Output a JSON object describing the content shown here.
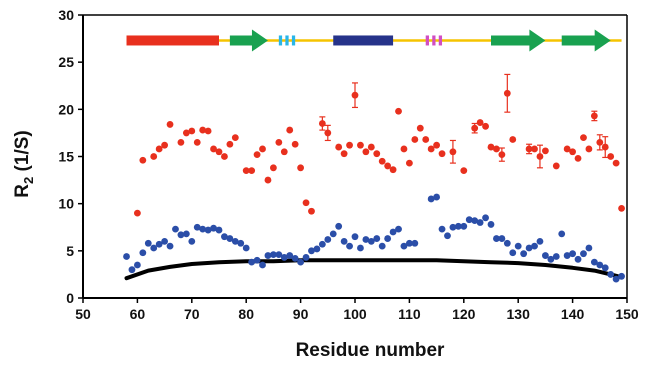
{
  "chart_data": {
    "type": "scatter",
    "xlabel": "Residue number",
    "ylabel_main": "R",
    "ylabel_sub": "2",
    "ylabel_unit": " (1/S)",
    "xlim": [
      50,
      150
    ],
    "ylim": [
      0,
      30
    ],
    "xticks": [
      50,
      60,
      70,
      80,
      90,
      100,
      110,
      120,
      130,
      140,
      150
    ],
    "yticks": [
      0,
      5,
      10,
      15,
      20,
      25,
      30
    ],
    "grid": false,
    "series": [
      {
        "color": "#e8301e",
        "marker": "circle",
        "points": [
          [
            60,
            9.0,
            0
          ],
          [
            61,
            14.6,
            0
          ],
          [
            63,
            15.0,
            0
          ],
          [
            64,
            15.8,
            0
          ],
          [
            65,
            16.2,
            0
          ],
          [
            66,
            18.4,
            0
          ],
          [
            68,
            16.5,
            0
          ],
          [
            69,
            17.5,
            0
          ],
          [
            70,
            17.7,
            0
          ],
          [
            71,
            16.5,
            0
          ],
          [
            72,
            17.8,
            0
          ],
          [
            73,
            17.7,
            0
          ],
          [
            74,
            15.8,
            0
          ],
          [
            75,
            15.5,
            0
          ],
          [
            76,
            15.0,
            0
          ],
          [
            77,
            16.3,
            0
          ],
          [
            78,
            17.0,
            0
          ],
          [
            80,
            13.5,
            0
          ],
          [
            81,
            13.5,
            0
          ],
          [
            82,
            15.2,
            0
          ],
          [
            83,
            15.8,
            0
          ],
          [
            84,
            12.5,
            0
          ],
          [
            85,
            13.8,
            0
          ],
          [
            86,
            16.5,
            0
          ],
          [
            87,
            15.5,
            0
          ],
          [
            88,
            17.8,
            0
          ],
          [
            89,
            16.3,
            0
          ],
          [
            90,
            13.8,
            0
          ],
          [
            91,
            10.1,
            0
          ],
          [
            92,
            9.2,
            0
          ],
          [
            94,
            18.5,
            0.7
          ],
          [
            95,
            17.5,
            0.8
          ],
          [
            97,
            16.0,
            0
          ],
          [
            98,
            15.3,
            0
          ],
          [
            99,
            16.2,
            0
          ],
          [
            100,
            21.5,
            1.3
          ],
          [
            101,
            16.2,
            0
          ],
          [
            102,
            15.5,
            0
          ],
          [
            103,
            16.0,
            0
          ],
          [
            104,
            15.3,
            0
          ],
          [
            105,
            14.5,
            0
          ],
          [
            106,
            14.0,
            0
          ],
          [
            107,
            13.6,
            0
          ],
          [
            108,
            19.8,
            0
          ],
          [
            109,
            15.8,
            0
          ],
          [
            110,
            14.3,
            0
          ],
          [
            111,
            16.8,
            0
          ],
          [
            112,
            18.0,
            0
          ],
          [
            113,
            16.8,
            0
          ],
          [
            114,
            15.8,
            0
          ],
          [
            115,
            16.2,
            0
          ],
          [
            116,
            15.3,
            0
          ],
          [
            118,
            15.5,
            1.2
          ],
          [
            120,
            13.5,
            0
          ],
          [
            122,
            18.0,
            0.5
          ],
          [
            123,
            18.6,
            0
          ],
          [
            124,
            18.2,
            0
          ],
          [
            125,
            16.0,
            0
          ],
          [
            126,
            15.8,
            0
          ],
          [
            127,
            15.2,
            0.7
          ],
          [
            128,
            21.7,
            2.0
          ],
          [
            129,
            16.8,
            0
          ],
          [
            132,
            15.8,
            0.5
          ],
          [
            133,
            15.8,
            0
          ],
          [
            134,
            15.0,
            1.2
          ],
          [
            135,
            15.6,
            0
          ],
          [
            137,
            14.0,
            0
          ],
          [
            139,
            15.8,
            0
          ],
          [
            140,
            15.5,
            0
          ],
          [
            141,
            14.8,
            0
          ],
          [
            142,
            17.0,
            0
          ],
          [
            143,
            15.8,
            0
          ],
          [
            144,
            19.3,
            0.5
          ],
          [
            145,
            16.5,
            0.8
          ],
          [
            146,
            16.0,
            1.1
          ],
          [
            147,
            15.0,
            0
          ],
          [
            148,
            14.3,
            0
          ],
          [
            149,
            9.5,
            0
          ]
        ]
      },
      {
        "color": "#2b4ea8",
        "marker": "circle",
        "points": [
          [
            58,
            4.4
          ],
          [
            59,
            3.0
          ],
          [
            60,
            3.5
          ],
          [
            61,
            4.8
          ],
          [
            62,
            5.8
          ],
          [
            63,
            5.3
          ],
          [
            64,
            5.7
          ],
          [
            65,
            6.0
          ],
          [
            66,
            5.5
          ],
          [
            67,
            7.3
          ],
          [
            68,
            6.7
          ],
          [
            69,
            6.8
          ],
          [
            70,
            6.0
          ],
          [
            71,
            7.5
          ],
          [
            72,
            7.3
          ],
          [
            73,
            7.2
          ],
          [
            74,
            7.4
          ],
          [
            75,
            7.2
          ],
          [
            76,
            6.5
          ],
          [
            77,
            6.3
          ],
          [
            78,
            6.0
          ],
          [
            79,
            5.8
          ],
          [
            80,
            5.3
          ],
          [
            81,
            3.8
          ],
          [
            82,
            4.0
          ],
          [
            83,
            3.5
          ],
          [
            84,
            4.5
          ],
          [
            85,
            4.6
          ],
          [
            86,
            4.6
          ],
          [
            87,
            4.3
          ],
          [
            88,
            4.5
          ],
          [
            89,
            4.2
          ],
          [
            90,
            3.8
          ],
          [
            91,
            4.3
          ],
          [
            92,
            5.0
          ],
          [
            93,
            5.2
          ],
          [
            94,
            5.7
          ],
          [
            95,
            6.2
          ],
          [
            96,
            6.8
          ],
          [
            97,
            7.6
          ],
          [
            98,
            6.0
          ],
          [
            99,
            5.5
          ],
          [
            100,
            6.5
          ],
          [
            101,
            5.3
          ],
          [
            102,
            6.2
          ],
          [
            103,
            6.0
          ],
          [
            104,
            6.3
          ],
          [
            105,
            5.5
          ],
          [
            106,
            6.3
          ],
          [
            107,
            7.0
          ],
          [
            108,
            7.3
          ],
          [
            109,
            5.5
          ],
          [
            110,
            5.8
          ],
          [
            111,
            5.8
          ],
          [
            114,
            10.5
          ],
          [
            115,
            10.7
          ],
          [
            116,
            7.3
          ],
          [
            117,
            6.6
          ],
          [
            118,
            7.5
          ],
          [
            119,
            7.6
          ],
          [
            120,
            7.6
          ],
          [
            121,
            8.3
          ],
          [
            122,
            8.2
          ],
          [
            123,
            8.0
          ],
          [
            124,
            8.5
          ],
          [
            125,
            7.8
          ],
          [
            126,
            6.3
          ],
          [
            127,
            6.3
          ],
          [
            128,
            5.8
          ],
          [
            129,
            4.8
          ],
          [
            130,
            5.5
          ],
          [
            131,
            4.7
          ],
          [
            132,
            5.3
          ],
          [
            133,
            5.5
          ],
          [
            134,
            6.0
          ],
          [
            135,
            4.5
          ],
          [
            136,
            4.1
          ],
          [
            137,
            4.4
          ],
          [
            138,
            6.8
          ],
          [
            139,
            4.5
          ],
          [
            140,
            4.7
          ],
          [
            141,
            4.1
          ],
          [
            142,
            4.7
          ],
          [
            143,
            5.3
          ],
          [
            144,
            3.8
          ],
          [
            145,
            3.5
          ],
          [
            146,
            3.2
          ],
          [
            147,
            2.5
          ],
          [
            148,
            2.0
          ],
          [
            149,
            2.3
          ]
        ]
      }
    ],
    "curve": {
      "color": "#000000",
      "x": [
        58,
        62,
        66,
        70,
        75,
        80,
        85,
        90,
        95,
        100,
        105,
        110,
        115,
        120,
        125,
        130,
        135,
        140,
        144,
        147,
        149
      ],
      "y": [
        2.1,
        2.9,
        3.3,
        3.6,
        3.8,
        3.9,
        3.9,
        4.0,
        4.0,
        4.0,
        4.0,
        4.0,
        4.0,
        3.9,
        3.8,
        3.7,
        3.5,
        3.2,
        2.9,
        2.5,
        2.2
      ]
    },
    "topology": {
      "y": 27.3,
      "line": {
        "x": [
          58,
          149
        ],
        "color": "#f5c400"
      },
      "elements": [
        {
          "kind": "helix",
          "start": 58,
          "end": 75,
          "color": "#e8301e"
        },
        {
          "kind": "strand",
          "start": 77,
          "end": 84,
          "color": "#19a150"
        },
        {
          "kind": "turn",
          "start": 86,
          "end": 89,
          "color": "#29b6e8"
        },
        {
          "kind": "helix",
          "start": 96,
          "end": 107,
          "color": "#26338a"
        },
        {
          "kind": "turn",
          "start": 113,
          "end": 116,
          "color": "#d14ec2"
        },
        {
          "kind": "strand",
          "start": 125,
          "end": 135,
          "color": "#19a150"
        },
        {
          "kind": "strand",
          "start": 138,
          "end": 147,
          "color": "#19a150"
        }
      ]
    }
  }
}
